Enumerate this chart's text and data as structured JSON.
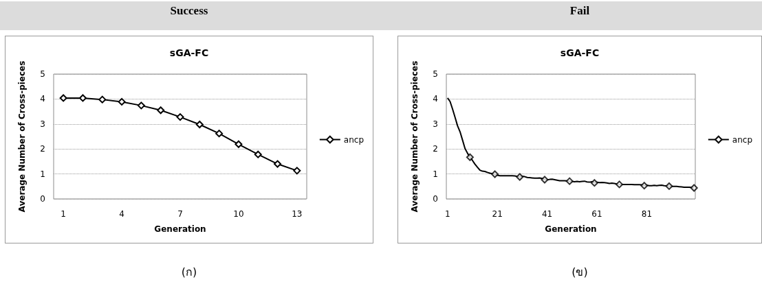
{
  "chart_data": [
    {
      "type": "line",
      "title": "sGA-FC",
      "xlabel": "Generation",
      "ylabel": "Average Number of Cross-pieces",
      "annotations": [
        "Success",
        "(ก)"
      ],
      "x": [
        1,
        2,
        3,
        4,
        5,
        6,
        7,
        8,
        9,
        10,
        11,
        12,
        13
      ],
      "series": [
        {
          "name": "ancp",
          "color": "#000000",
          "values": [
            4.04,
            4.04,
            3.98,
            3.89,
            3.74,
            3.55,
            3.28,
            2.98,
            2.62,
            2.19,
            1.78,
            1.4,
            1.13
          ]
        }
      ],
      "xlim": [
        0.5,
        13.5
      ],
      "xticks": [
        1,
        4,
        7,
        10,
        13
      ],
      "ylim": [
        0,
        5
      ],
      "yticks": [
        0,
        1,
        2,
        3,
        4,
        5
      ],
      "grid": "y",
      "legend": "right",
      "marker": "diamond",
      "line_style": "solid"
    },
    {
      "type": "line",
      "title": "sGA-FC",
      "xlabel": "Generation",
      "ylabel": "Average Number of Cross-pieces",
      "annotations": [
        "Fail",
        "(ข)"
      ],
      "x": [
        1,
        2,
        3,
        4,
        5,
        6,
        7,
        8,
        9,
        10,
        11,
        12,
        13,
        14,
        15,
        16,
        17,
        18,
        19,
        20,
        21,
        22,
        23,
        24,
        25,
        26,
        27,
        28,
        29,
        30,
        31,
        32,
        33,
        34,
        35,
        36,
        37,
        38,
        39,
        40,
        41,
        42,
        43,
        44,
        45,
        46,
        47,
        48,
        49,
        50,
        51,
        52,
        53,
        54,
        55,
        56,
        57,
        58,
        59,
        60,
        61,
        62,
        63,
        64,
        65,
        66,
        67,
        68,
        69,
        70,
        71,
        72,
        73,
        74,
        75,
        76,
        77,
        78,
        79,
        80,
        81,
        82,
        83,
        84,
        85,
        86,
        87,
        88,
        89,
        90,
        91,
        92,
        93,
        94,
        95,
        96,
        97,
        98,
        99,
        100
      ],
      "series": [
        {
          "name": "ancp",
          "color": "#000000",
          "marker": "none",
          "values": [
            4.04,
            3.9,
            3.6,
            3.27,
            2.93,
            2.69,
            2.36,
            2.02,
            1.83,
            1.67,
            1.54,
            1.39,
            1.27,
            1.15,
            1.11,
            1.1,
            1.06,
            1.03,
            1.01,
            0.99,
            0.95,
            0.93,
            0.93,
            0.93,
            0.93,
            0.93,
            0.93,
            0.92,
            0.9,
            0.88,
            0.91,
            0.89,
            0.86,
            0.85,
            0.84,
            0.83,
            0.83,
            0.84,
            0.82,
            0.77,
            0.76,
            0.78,
            0.79,
            0.77,
            0.75,
            0.73,
            0.73,
            0.73,
            0.72,
            0.71,
            0.7,
            0.69,
            0.7,
            0.69,
            0.7,
            0.71,
            0.68,
            0.67,
            0.69,
            0.64,
            0.67,
            0.65,
            0.66,
            0.65,
            0.64,
            0.62,
            0.63,
            0.62,
            0.6,
            0.58,
            0.58,
            0.58,
            0.58,
            0.58,
            0.58,
            0.57,
            0.57,
            0.57,
            0.56,
            0.53,
            0.55,
            0.53,
            0.53,
            0.54,
            0.53,
            0.54,
            0.55,
            0.53,
            0.52,
            0.51,
            0.5,
            0.5,
            0.5,
            0.49,
            0.48,
            0.47,
            0.47,
            0.47,
            0.46,
            0.44
          ]
        },
        {
          "type": "scatter",
          "color": "#000000",
          "x": [
            10,
            20,
            30,
            40,
            50,
            60,
            70,
            80,
            90,
            100
          ],
          "values": [
            1.67,
            0.99,
            0.88,
            0.77,
            0.71,
            0.64,
            0.58,
            0.53,
            0.51,
            0.44
          ]
        }
      ],
      "xlim": [
        0.5,
        100.5
      ],
      "xticks": [
        1,
        21,
        41,
        61,
        81
      ],
      "ylim": [
        0,
        5
      ],
      "yticks": [
        0,
        1,
        2,
        3,
        4,
        5
      ],
      "grid": "y",
      "legend": "right",
      "marker": "diamond",
      "line_style": "solid"
    }
  ]
}
